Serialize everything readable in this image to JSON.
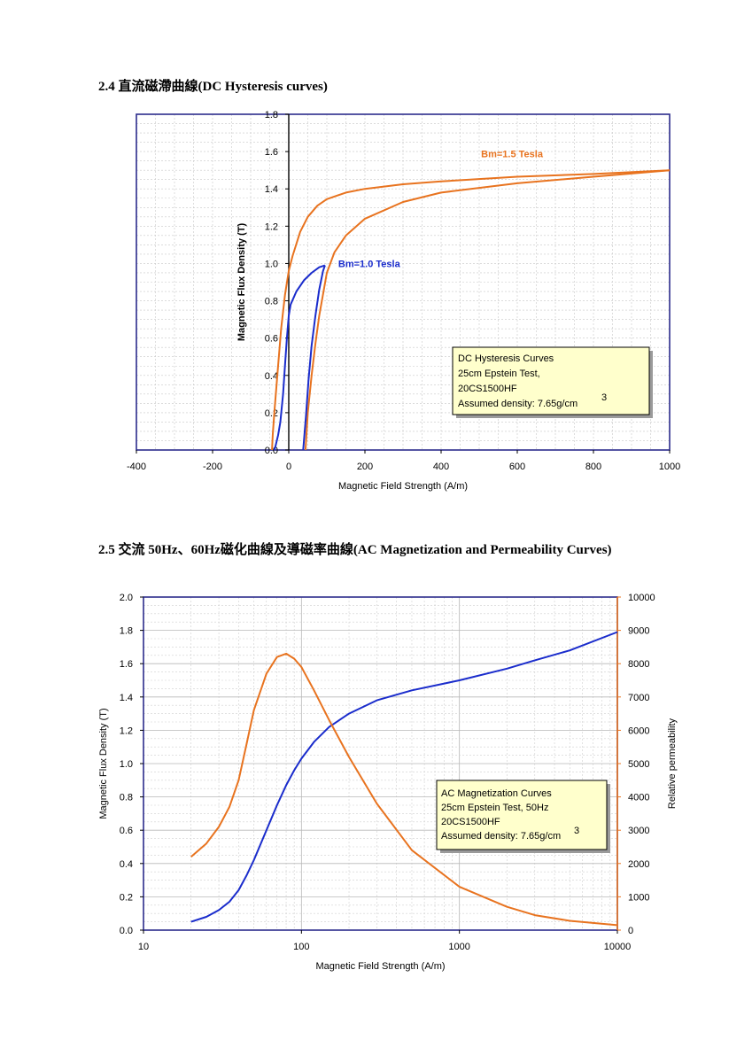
{
  "headings": {
    "h1": "2.4 直流磁滯曲線(DC Hysteresis curves)",
    "h2": "2.5 交流 50Hz、60Hz磁化曲線及導磁率曲線(AC Magnetization and Permeability Curves)"
  },
  "chart_data": [
    {
      "type": "line",
      "title": "",
      "xlabel": "Magnetic Field Strength (A/m)",
      "ylabel": "Magnetic Flux Density (T)",
      "xlim": [
        -400,
        1000
      ],
      "ylim": [
        0,
        1.8
      ],
      "x_ticks": [
        "-400",
        "-200",
        "0",
        "200",
        "400",
        "600",
        "800",
        "1000"
      ],
      "y_ticks": [
        "0.0",
        "0.2",
        "0.4",
        "0.6",
        "0.8",
        "1.0",
        "1.2",
        "1.4",
        "1.6",
        "1.8"
      ],
      "grid": true,
      "colors": {
        "bm15": "#e8731f",
        "bm10": "#1a2ccc",
        "frame": "#2c2c8c"
      },
      "labels": {
        "bm15": "Bm=1.5 Tesla",
        "bm10": "Bm=1.0 Tesla"
      },
      "annotation": [
        "DC Hysteresis Curves",
        "25cm Epstein Test,",
        "20CS1500HF",
        "Assumed density: 7.65g/cm",
        "3"
      ],
      "series": [
        {
          "id": "bm15_upper",
          "x": [
            1000,
            800,
            600,
            400,
            300,
            200,
            150,
            100,
            75,
            50,
            30,
            10,
            0,
            -10,
            -20,
            -30,
            -38,
            -42,
            -44
          ],
          "y": [
            1.5,
            1.48,
            1.465,
            1.44,
            1.425,
            1.4,
            1.38,
            1.345,
            1.31,
            1.25,
            1.17,
            1.04,
            0.96,
            0.83,
            0.65,
            0.4,
            0.2,
            0.08,
            0
          ]
        },
        {
          "id": "bm15_lower",
          "x": [
            44,
            50,
            60,
            70,
            80,
            100,
            120,
            150,
            200,
            300,
            400,
            600,
            800,
            1000
          ],
          "y": [
            0,
            0.2,
            0.4,
            0.57,
            0.72,
            0.95,
            1.06,
            1.15,
            1.24,
            1.33,
            1.38,
            1.43,
            1.465,
            1.5
          ]
        },
        {
          "id": "bm10_upper",
          "x": [
            95,
            80,
            60,
            40,
            20,
            5,
            0,
            -5,
            -10,
            -15,
            -22,
            -28,
            -35,
            -38
          ],
          "y": [
            0.99,
            0.98,
            0.95,
            0.91,
            0.85,
            0.78,
            0.72,
            0.6,
            0.45,
            0.3,
            0.15,
            0.08,
            0.02,
            0
          ]
        },
        {
          "id": "bm10_lower",
          "x": [
            38,
            45,
            52,
            60,
            70,
            80,
            90,
            95
          ],
          "y": [
            0,
            0.18,
            0.38,
            0.56,
            0.72,
            0.86,
            0.96,
            0.99
          ]
        }
      ]
    },
    {
      "type": "line",
      "title": "",
      "xlabel": "Magnetic Field Strength (A/m)",
      "ylabel": "Magnetic Flux Density (T)",
      "ylabel_right": "Relative permeability",
      "xscale": "log",
      "xlim": [
        10,
        10000
      ],
      "ylim": [
        0,
        2.0
      ],
      "ylim_right": [
        0,
        10000
      ],
      "x_ticks": [
        10,
        100,
        1000,
        10000
      ],
      "y_ticks": [
        "0.0",
        "0.2",
        "0.4",
        "0.6",
        "0.8",
        "1.0",
        "1.2",
        "1.4",
        "1.6",
        "1.8",
        "2.0"
      ],
      "y_ticks_right": [
        "0",
        "1000",
        "2000",
        "3000",
        "4000",
        "5000",
        "6000",
        "7000",
        "8000",
        "9000",
        "10000"
      ],
      "grid": true,
      "colors": {
        "flux": "#1a2ccc",
        "perm": "#e8731f",
        "frame": "#2c2c8c",
        "right_axis": "#e8731f"
      },
      "annotation": [
        "AC Magnetization Curves",
        "25cm Epstein Test, 50Hz",
        "20CS1500HF",
        "Assumed density: 7.65g/cm",
        "3"
      ],
      "series": [
        {
          "id": "flux_density",
          "axis": "left",
          "x": [
            20,
            25,
            30,
            35,
            40,
            45,
            50,
            60,
            70,
            80,
            90,
            100,
            120,
            150,
            200,
            300,
            500,
            1000,
            2000,
            3000,
            5000,
            10000
          ],
          "y": [
            0.05,
            0.08,
            0.12,
            0.17,
            0.24,
            0.33,
            0.42,
            0.6,
            0.75,
            0.87,
            0.96,
            1.03,
            1.13,
            1.22,
            1.3,
            1.38,
            1.44,
            1.5,
            1.57,
            1.62,
            1.68,
            1.79
          ]
        },
        {
          "id": "relative_permeability",
          "axis": "right",
          "x": [
            20,
            25,
            30,
            35,
            40,
            45,
            50,
            60,
            70,
            80,
            90,
            100,
            120,
            150,
            200,
            300,
            500,
            1000,
            2000,
            3000,
            5000,
            10000
          ],
          "y": [
            2200,
            2600,
            3100,
            3700,
            4500,
            5600,
            6600,
            7700,
            8200,
            8300,
            8150,
            7900,
            7200,
            6300,
            5200,
            3800,
            2400,
            1300,
            700,
            450,
            280,
            150
          ]
        }
      ]
    }
  ]
}
